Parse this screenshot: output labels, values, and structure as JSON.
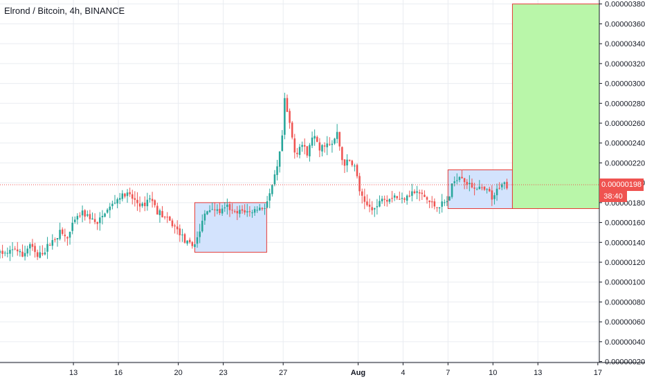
{
  "title": "Elrond / Bitcoin, 4h, BINANCE",
  "last_price": "0.00000198",
  "countdown": "38:40",
  "colors": {
    "up": "#26a69a",
    "down": "#ef5350",
    "grid": "#e9ecf1",
    "zone_fill": "#d3e3fd",
    "zone_border": "#e53935",
    "target_fill": "#b9f6a9"
  },
  "chart_data": {
    "type": "candlestick",
    "title": "Elrond / Bitcoin, 4h, BINANCE",
    "y_axis": {
      "ticks": [
        "0.00000020",
        "0.00000040",
        "0.00000060",
        "0.00000080",
        "0.00000100",
        "0.00000120",
        "0.00000140",
        "0.00000160",
        "0.00000180",
        "0.00000200",
        "0.00000220",
        "0.00000240",
        "0.00000260",
        "0.00000280",
        "0.00000300",
        "0.00000320",
        "0.00000340",
        "0.00000360",
        "0.00000380"
      ],
      "range": [
        1.9e-07,
        3.84e-06
      ]
    },
    "x_axis": {
      "ticks": [
        {
          "label": "13",
          "day": 13
        },
        {
          "label": "16",
          "day": 16
        },
        {
          "label": "20",
          "day": 20
        },
        {
          "label": "23",
          "day": 23
        },
        {
          "label": "27",
          "day": 27
        },
        {
          "label": "Aug",
          "day": 32
        },
        {
          "label": "4",
          "day": 35
        },
        {
          "label": "7",
          "day": 38
        },
        {
          "label": "10",
          "day": 41
        },
        {
          "label": "13",
          "day": 44
        },
        {
          "label": "17",
          "day": 48
        }
      ],
      "range": [
        8.1,
        48.1
      ]
    },
    "last_price": 1.98e-06,
    "price_guide": 1.98e-06,
    "path": [
      [
        8.1,
        1.3e-06
      ],
      [
        8.6,
        1.28e-06
      ],
      [
        9.1,
        1.34e-06
      ],
      [
        9.6,
        1.26e-06
      ],
      [
        10.1,
        1.38e-06
      ],
      [
        10.6,
        1.25e-06
      ],
      [
        11.1,
        1.32e-06
      ],
      [
        11.6,
        1.42e-06
      ],
      [
        12.1,
        1.5e-06
      ],
      [
        12.6,
        1.44e-06
      ],
      [
        13.1,
        1.62e-06
      ],
      [
        13.6,
        1.7e-06
      ],
      [
        14.1,
        1.65e-06
      ],
      [
        14.6,
        1.58e-06
      ],
      [
        15.1,
        1.7e-06
      ],
      [
        15.6,
        1.78e-06
      ],
      [
        16.1,
        1.86e-06
      ],
      [
        16.6,
        1.88e-06
      ],
      [
        17.1,
        1.82e-06
      ],
      [
        17.6,
        1.76e-06
      ],
      [
        18.1,
        1.86e-06
      ],
      [
        18.6,
        1.72e-06
      ],
      [
        19.1,
        1.65e-06
      ],
      [
        19.6,
        1.58e-06
      ],
      [
        20.1,
        1.5e-06
      ],
      [
        20.6,
        1.38e-06
      ],
      [
        21.0,
        1.36e-06
      ],
      [
        21.4,
        1.5e-06
      ],
      [
        21.8,
        1.7e-06
      ],
      [
        22.3,
        1.75e-06
      ],
      [
        22.8,
        1.7e-06
      ],
      [
        23.3,
        1.76e-06
      ],
      [
        23.8,
        1.68e-06
      ],
      [
        24.3,
        1.72e-06
      ],
      [
        24.8,
        1.7e-06
      ],
      [
        25.3,
        1.74e-06
      ],
      [
        25.8,
        1.76e-06
      ],
      [
        26.2,
        1.92e-06
      ],
      [
        26.6,
        2.15e-06
      ],
      [
        26.9,
        2.4e-06
      ],
      [
        27.1,
        2.82e-06
      ],
      [
        27.4,
        2.62e-06
      ],
      [
        27.8,
        2.28e-06
      ],
      [
        28.2,
        2.4e-06
      ],
      [
        28.6,
        2.28e-06
      ],
      [
        29.0,
        2.5e-06
      ],
      [
        29.4,
        2.32e-06
      ],
      [
        29.8,
        2.4e-06
      ],
      [
        30.2,
        2.36e-06
      ],
      [
        30.6,
        2.5e-06
      ],
      [
        31.0,
        2.18e-06
      ],
      [
        31.4,
        2.22e-06
      ],
      [
        31.8,
        2.16e-06
      ],
      [
        32.1,
        1.92e-06
      ],
      [
        32.4,
        1.78e-06
      ],
      [
        32.8,
        1.76e-06
      ],
      [
        33.2,
        1.74e-06
      ],
      [
        33.6,
        1.86e-06
      ],
      [
        34.0,
        1.84e-06
      ],
      [
        34.4,
        1.88e-06
      ],
      [
        34.8,
        1.82e-06
      ],
      [
        35.2,
        1.88e-06
      ],
      [
        35.6,
        1.9e-06
      ],
      [
        36.0,
        1.9e-06
      ],
      [
        36.4,
        1.86e-06
      ],
      [
        36.8,
        1.8e-06
      ],
      [
        37.2,
        1.76e-06
      ],
      [
        37.6,
        1.78e-06
      ],
      [
        38.0,
        1.82e-06
      ],
      [
        38.3,
        1.98e-06
      ],
      [
        38.6,
        2.06e-06
      ],
      [
        38.9,
        2.08e-06
      ],
      [
        39.2,
        2e-06
      ],
      [
        39.6,
        1.96e-06
      ],
      [
        40.0,
        1.95e-06
      ],
      [
        40.4,
        1.92e-06
      ],
      [
        40.8,
        1.9e-06
      ],
      [
        41.0,
        1.8e-06
      ],
      [
        41.3,
        1.94e-06
      ],
      [
        41.6,
        2e-06
      ],
      [
        41.9,
        1.98e-06
      ],
      [
        42.0,
        1.98e-06
      ]
    ],
    "annotations": [
      {
        "type": "zone",
        "name": "accumulation-zone-1",
        "x": [
          21.1,
          25.9
        ],
        "y": [
          1.3e-06,
          1.8e-06
        ]
      },
      {
        "type": "zone",
        "name": "accumulation-zone-2",
        "x": [
          38.0,
          42.3
        ],
        "y": [
          1.74e-06,
          2.13e-06
        ]
      },
      {
        "type": "target",
        "name": "target-zone",
        "x": [
          42.3,
          48.1
        ],
        "y": [
          1.74e-06,
          3.8e-06
        ]
      }
    ]
  }
}
